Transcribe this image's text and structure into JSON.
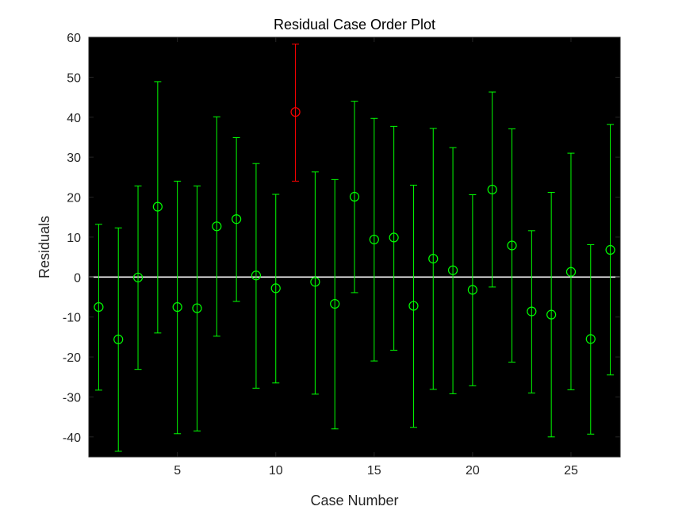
{
  "chart_data": {
    "type": "scatter",
    "title": "Residual Case Order Plot",
    "xlabel": "Case Number",
    "ylabel": "Residuals",
    "xlim": [
      0.5,
      27.5
    ],
    "ylim": [
      -45,
      60
    ],
    "xticks": [
      5,
      10,
      15,
      20,
      25
    ],
    "yticks": [
      -40,
      -30,
      -20,
      -10,
      0,
      10,
      20,
      30,
      40,
      50,
      60
    ],
    "grid": false,
    "background_color": "#000000",
    "zero_line_color": "#ffffff",
    "normal_color": "#00ff00",
    "outlier_color": "#ff0000",
    "points": [
      {
        "case": 1,
        "residual": -7.5,
        "lower": -28.3,
        "upper": 13.2,
        "outlier": false
      },
      {
        "case": 2,
        "residual": -15.6,
        "lower": -43.6,
        "upper": 12.3,
        "outlier": false
      },
      {
        "case": 3,
        "residual": -0.1,
        "lower": -23.1,
        "upper": 22.8,
        "outlier": false
      },
      {
        "case": 4,
        "residual": 17.6,
        "lower": -14.0,
        "upper": 48.9,
        "outlier": false
      },
      {
        "case": 5,
        "residual": -7.5,
        "lower": -39.2,
        "upper": 24.0,
        "outlier": false
      },
      {
        "case": 6,
        "residual": -7.8,
        "lower": -38.5,
        "upper": 22.8,
        "outlier": false
      },
      {
        "case": 7,
        "residual": 12.7,
        "lower": -14.8,
        "upper": 40.1,
        "outlier": false
      },
      {
        "case": 8,
        "residual": 14.5,
        "lower": -6.1,
        "upper": 34.9,
        "outlier": false
      },
      {
        "case": 9,
        "residual": 0.4,
        "lower": -27.8,
        "upper": 28.4,
        "outlier": false
      },
      {
        "case": 10,
        "residual": -2.8,
        "lower": -26.5,
        "upper": 20.7,
        "outlier": false
      },
      {
        "case": 11,
        "residual": 41.3,
        "lower": 24.0,
        "upper": 58.3,
        "outlier": true
      },
      {
        "case": 12,
        "residual": -1.2,
        "lower": -29.3,
        "upper": 26.3,
        "outlier": false
      },
      {
        "case": 13,
        "residual": -6.7,
        "lower": -38.0,
        "upper": 24.4,
        "outlier": false
      },
      {
        "case": 14,
        "residual": 20.1,
        "lower": -3.9,
        "upper": 44.0,
        "outlier": false
      },
      {
        "case": 15,
        "residual": 9.4,
        "lower": -21.0,
        "upper": 39.7,
        "outlier": false
      },
      {
        "case": 16,
        "residual": 9.9,
        "lower": -18.3,
        "upper": 37.7,
        "outlier": false
      },
      {
        "case": 17,
        "residual": -7.2,
        "lower": -37.6,
        "upper": 23.0,
        "outlier": false
      },
      {
        "case": 18,
        "residual": 4.6,
        "lower": -28.1,
        "upper": 37.2,
        "outlier": false
      },
      {
        "case": 19,
        "residual": 1.7,
        "lower": -29.2,
        "upper": 32.4,
        "outlier": false
      },
      {
        "case": 20,
        "residual": -3.2,
        "lower": -27.2,
        "upper": 20.6,
        "outlier": false
      },
      {
        "case": 21,
        "residual": 21.9,
        "lower": -2.5,
        "upper": 46.3,
        "outlier": false
      },
      {
        "case": 22,
        "residual": 7.9,
        "lower": -21.3,
        "upper": 37.1,
        "outlier": false
      },
      {
        "case": 23,
        "residual": -8.6,
        "lower": -29.0,
        "upper": 11.6,
        "outlier": false
      },
      {
        "case": 24,
        "residual": -9.4,
        "lower": -40.0,
        "upper": 21.2,
        "outlier": false
      },
      {
        "case": 25,
        "residual": 1.3,
        "lower": -28.2,
        "upper": 31.0,
        "outlier": false
      },
      {
        "case": 26,
        "residual": -15.5,
        "lower": -39.3,
        "upper": 8.1,
        "outlier": false
      },
      {
        "case": 27,
        "residual": 6.8,
        "lower": -24.5,
        "upper": 38.2,
        "outlier": false
      }
    ]
  }
}
